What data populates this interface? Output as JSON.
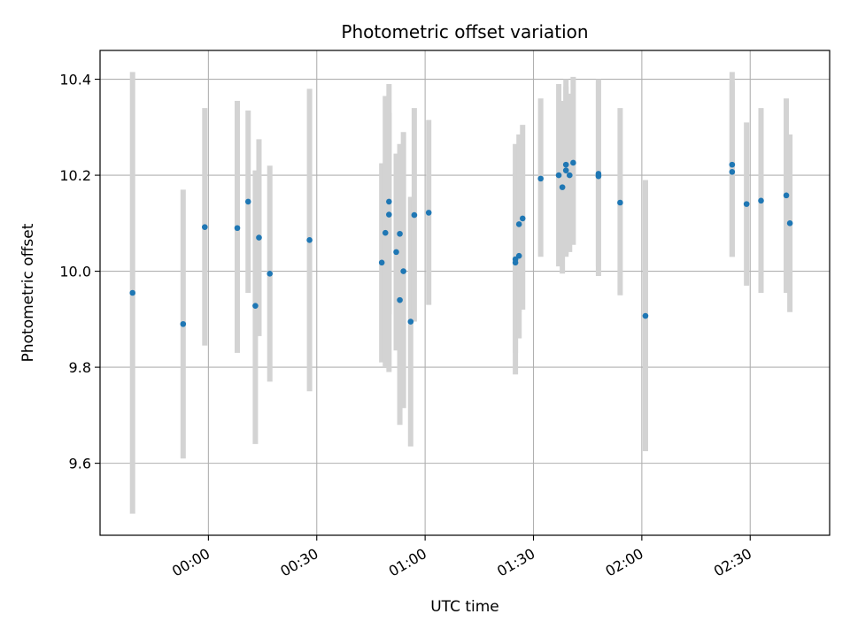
{
  "chart_data": {
    "type": "scatter",
    "title": "Photometric offset variation",
    "xlabel": "UTC time",
    "ylabel": "Photometric offset",
    "grid": true,
    "colors": {
      "point": "#1f77b4",
      "errorbar": "#d3d3d3",
      "grid": "#b0b0b0",
      "frame": "#000000"
    },
    "x_ticks": [
      "00:00",
      "00:30",
      "01:00",
      "01:30",
      "02:00",
      "02:30"
    ],
    "y_ticks": [
      9.6,
      9.8,
      10.0,
      10.2,
      10.4
    ],
    "xlim": [
      "-00:30",
      "02:52"
    ],
    "ylim": [
      9.45,
      10.46
    ],
    "series": [
      {
        "points": [
          {
            "x": "-00:21",
            "y": 9.955,
            "ylo": 9.495,
            "yhi": 10.415
          },
          {
            "x": "-00:07",
            "y": 9.89,
            "ylo": 9.61,
            "yhi": 10.17
          },
          {
            "x": "-00:01",
            "y": 10.092,
            "ylo": 9.845,
            "yhi": 10.34
          },
          {
            "x": "00:08",
            "y": 10.09,
            "ylo": 9.83,
            "yhi": 10.355
          },
          {
            "x": "00:11",
            "y": 10.145,
            "ylo": 9.955,
            "yhi": 10.335
          },
          {
            "x": "00:13",
            "y": 9.928,
            "ylo": 9.64,
            "yhi": 10.21
          },
          {
            "x": "00:14",
            "y": 10.07,
            "ylo": 9.865,
            "yhi": 10.275
          },
          {
            "x": "00:17",
            "y": 9.995,
            "ylo": 9.77,
            "yhi": 10.22
          },
          {
            "x": "00:28",
            "y": 10.065,
            "ylo": 9.75,
            "yhi": 10.38
          },
          {
            "x": "00:48",
            "y": 10.018,
            "ylo": 9.81,
            "yhi": 10.225
          },
          {
            "x": "00:49",
            "y": 10.08,
            "ylo": 9.8,
            "yhi": 10.365
          },
          {
            "x": "00:50",
            "y": 10.145,
            "ylo": 9.79,
            "yhi": 10.39
          },
          {
            "x": "00:50",
            "y": 10.118,
            "ylo": 9.91,
            "yhi": 10.33
          },
          {
            "x": "00:52",
            "y": 10.04,
            "ylo": 9.835,
            "yhi": 10.245
          },
          {
            "x": "00:53",
            "y": 10.078,
            "ylo": 9.895,
            "yhi": 10.265
          },
          {
            "x": "00:53",
            "y": 9.94,
            "ylo": 9.68,
            "yhi": 10.2
          },
          {
            "x": "00:54",
            "y": 10.0,
            "ylo": 9.715,
            "yhi": 10.29
          },
          {
            "x": "00:56",
            "y": 9.895,
            "ylo": 9.635,
            "yhi": 10.155
          },
          {
            "x": "00:57",
            "y": 10.117,
            "ylo": 9.895,
            "yhi": 10.34
          },
          {
            "x": "01:01",
            "y": 10.122,
            "ylo": 9.93,
            "yhi": 10.315
          },
          {
            "x": "01:25",
            "y": 10.025,
            "ylo": 9.785,
            "yhi": 10.265
          },
          {
            "x": "01:25",
            "y": 10.018,
            "ylo": 9.83,
            "yhi": 10.205
          },
          {
            "x": "01:26",
            "y": 10.032,
            "ylo": 9.86,
            "yhi": 10.205
          },
          {
            "x": "01:26",
            "y": 10.098,
            "ylo": 9.915,
            "yhi": 10.285
          },
          {
            "x": "01:27",
            "y": 10.11,
            "ylo": 9.92,
            "yhi": 10.305
          },
          {
            "x": "01:32",
            "y": 10.193,
            "ylo": 10.03,
            "yhi": 10.36
          },
          {
            "x": "01:37",
            "y": 10.2,
            "ylo": 10.01,
            "yhi": 10.39
          },
          {
            "x": "01:38",
            "y": 10.175,
            "ylo": 9.995,
            "yhi": 10.355
          },
          {
            "x": "01:39",
            "y": 10.21,
            "ylo": 10.03,
            "yhi": 10.385
          },
          {
            "x": "01:39",
            "y": 10.222,
            "ylo": 10.035,
            "yhi": 10.4
          },
          {
            "x": "01:40",
            "y": 10.2,
            "ylo": 10.04,
            "yhi": 10.37
          },
          {
            "x": "01:41",
            "y": 10.226,
            "ylo": 10.055,
            "yhi": 10.405
          },
          {
            "x": "01:48",
            "y": 10.198,
            "ylo": 9.99,
            "yhi": 10.4
          },
          {
            "x": "01:48",
            "y": 10.203,
            "ylo": 10.01,
            "yhi": 10.395
          },
          {
            "x": "01:54",
            "y": 10.143,
            "ylo": 9.95,
            "yhi": 10.34
          },
          {
            "x": "02:01",
            "y": 9.907,
            "ylo": 9.625,
            "yhi": 10.19
          },
          {
            "x": "02:25",
            "y": 10.222,
            "ylo": 10.03,
            "yhi": 10.415
          },
          {
            "x": "02:25",
            "y": 10.207,
            "ylo": 10.03,
            "yhi": 10.395
          },
          {
            "x": "02:29",
            "y": 10.14,
            "ylo": 9.97,
            "yhi": 10.31
          },
          {
            "x": "02:33",
            "y": 10.147,
            "ylo": 9.955,
            "yhi": 10.34
          },
          {
            "x": "02:40",
            "y": 10.158,
            "ylo": 9.955,
            "yhi": 10.36
          },
          {
            "x": "02:41",
            "y": 10.1,
            "ylo": 9.915,
            "yhi": 10.285
          }
        ]
      }
    ]
  }
}
